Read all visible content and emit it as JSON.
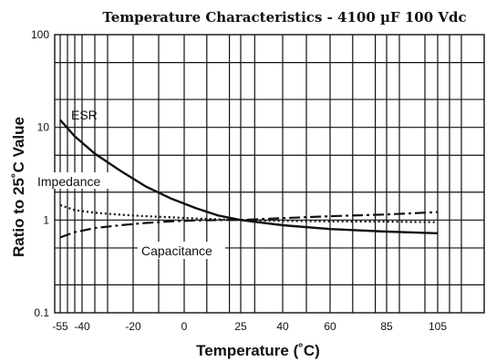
{
  "chart_data": {
    "type": "line",
    "title": "Temperature Characteristics - 4100 µF 100 Vdc",
    "xlabel": "Temperature (˚C)",
    "ylabel": "Ratio to 25˚C Value",
    "xlim": [
      -55,
      105
    ],
    "ylim": [
      0.1,
      100
    ],
    "yscale": "log",
    "grid": true,
    "x_ticks": [
      -55,
      -40,
      -20,
      0,
      25,
      40,
      60,
      85,
      105
    ],
    "x_tick_labels": [
      "-55",
      "-40",
      "-20",
      "0",
      "25",
      "40",
      "60",
      "85",
      "105"
    ],
    "y_ticks": [
      0.1,
      1,
      10,
      100
    ],
    "y_tick_labels": [
      "0.1",
      "1",
      "10",
      "100"
    ],
    "series": [
      {
        "name": "ESR",
        "line_style": "solid",
        "x": [
          -55,
          -45,
          -35,
          -25,
          -15,
          -5,
          5,
          15,
          25,
          40,
          60,
          85,
          105
        ],
        "y": [
          12,
          8.0,
          5.2,
          3.4,
          2.3,
          1.7,
          1.35,
          1.12,
          1.0,
          0.88,
          0.8,
          0.75,
          0.72
        ]
      },
      {
        "name": "Impedance",
        "line_style": "dotted",
        "x": [
          -55,
          -45,
          -35,
          -25,
          -15,
          -5,
          5,
          15,
          25,
          40,
          60,
          85,
          105
        ],
        "y": [
          1.45,
          1.28,
          1.2,
          1.14,
          1.1,
          1.07,
          1.04,
          1.02,
          1.0,
          0.98,
          0.97,
          0.96,
          0.95
        ]
      },
      {
        "name": "Capacitance",
        "line_style": "dash-dot",
        "x": [
          -55,
          -45,
          -35,
          -25,
          -15,
          -5,
          5,
          15,
          25,
          40,
          60,
          85,
          105
        ],
        "y": [
          0.65,
          0.74,
          0.82,
          0.88,
          0.93,
          0.97,
          0.99,
          1.0,
          1.0,
          1.05,
          1.1,
          1.15,
          1.22
        ]
      }
    ]
  }
}
